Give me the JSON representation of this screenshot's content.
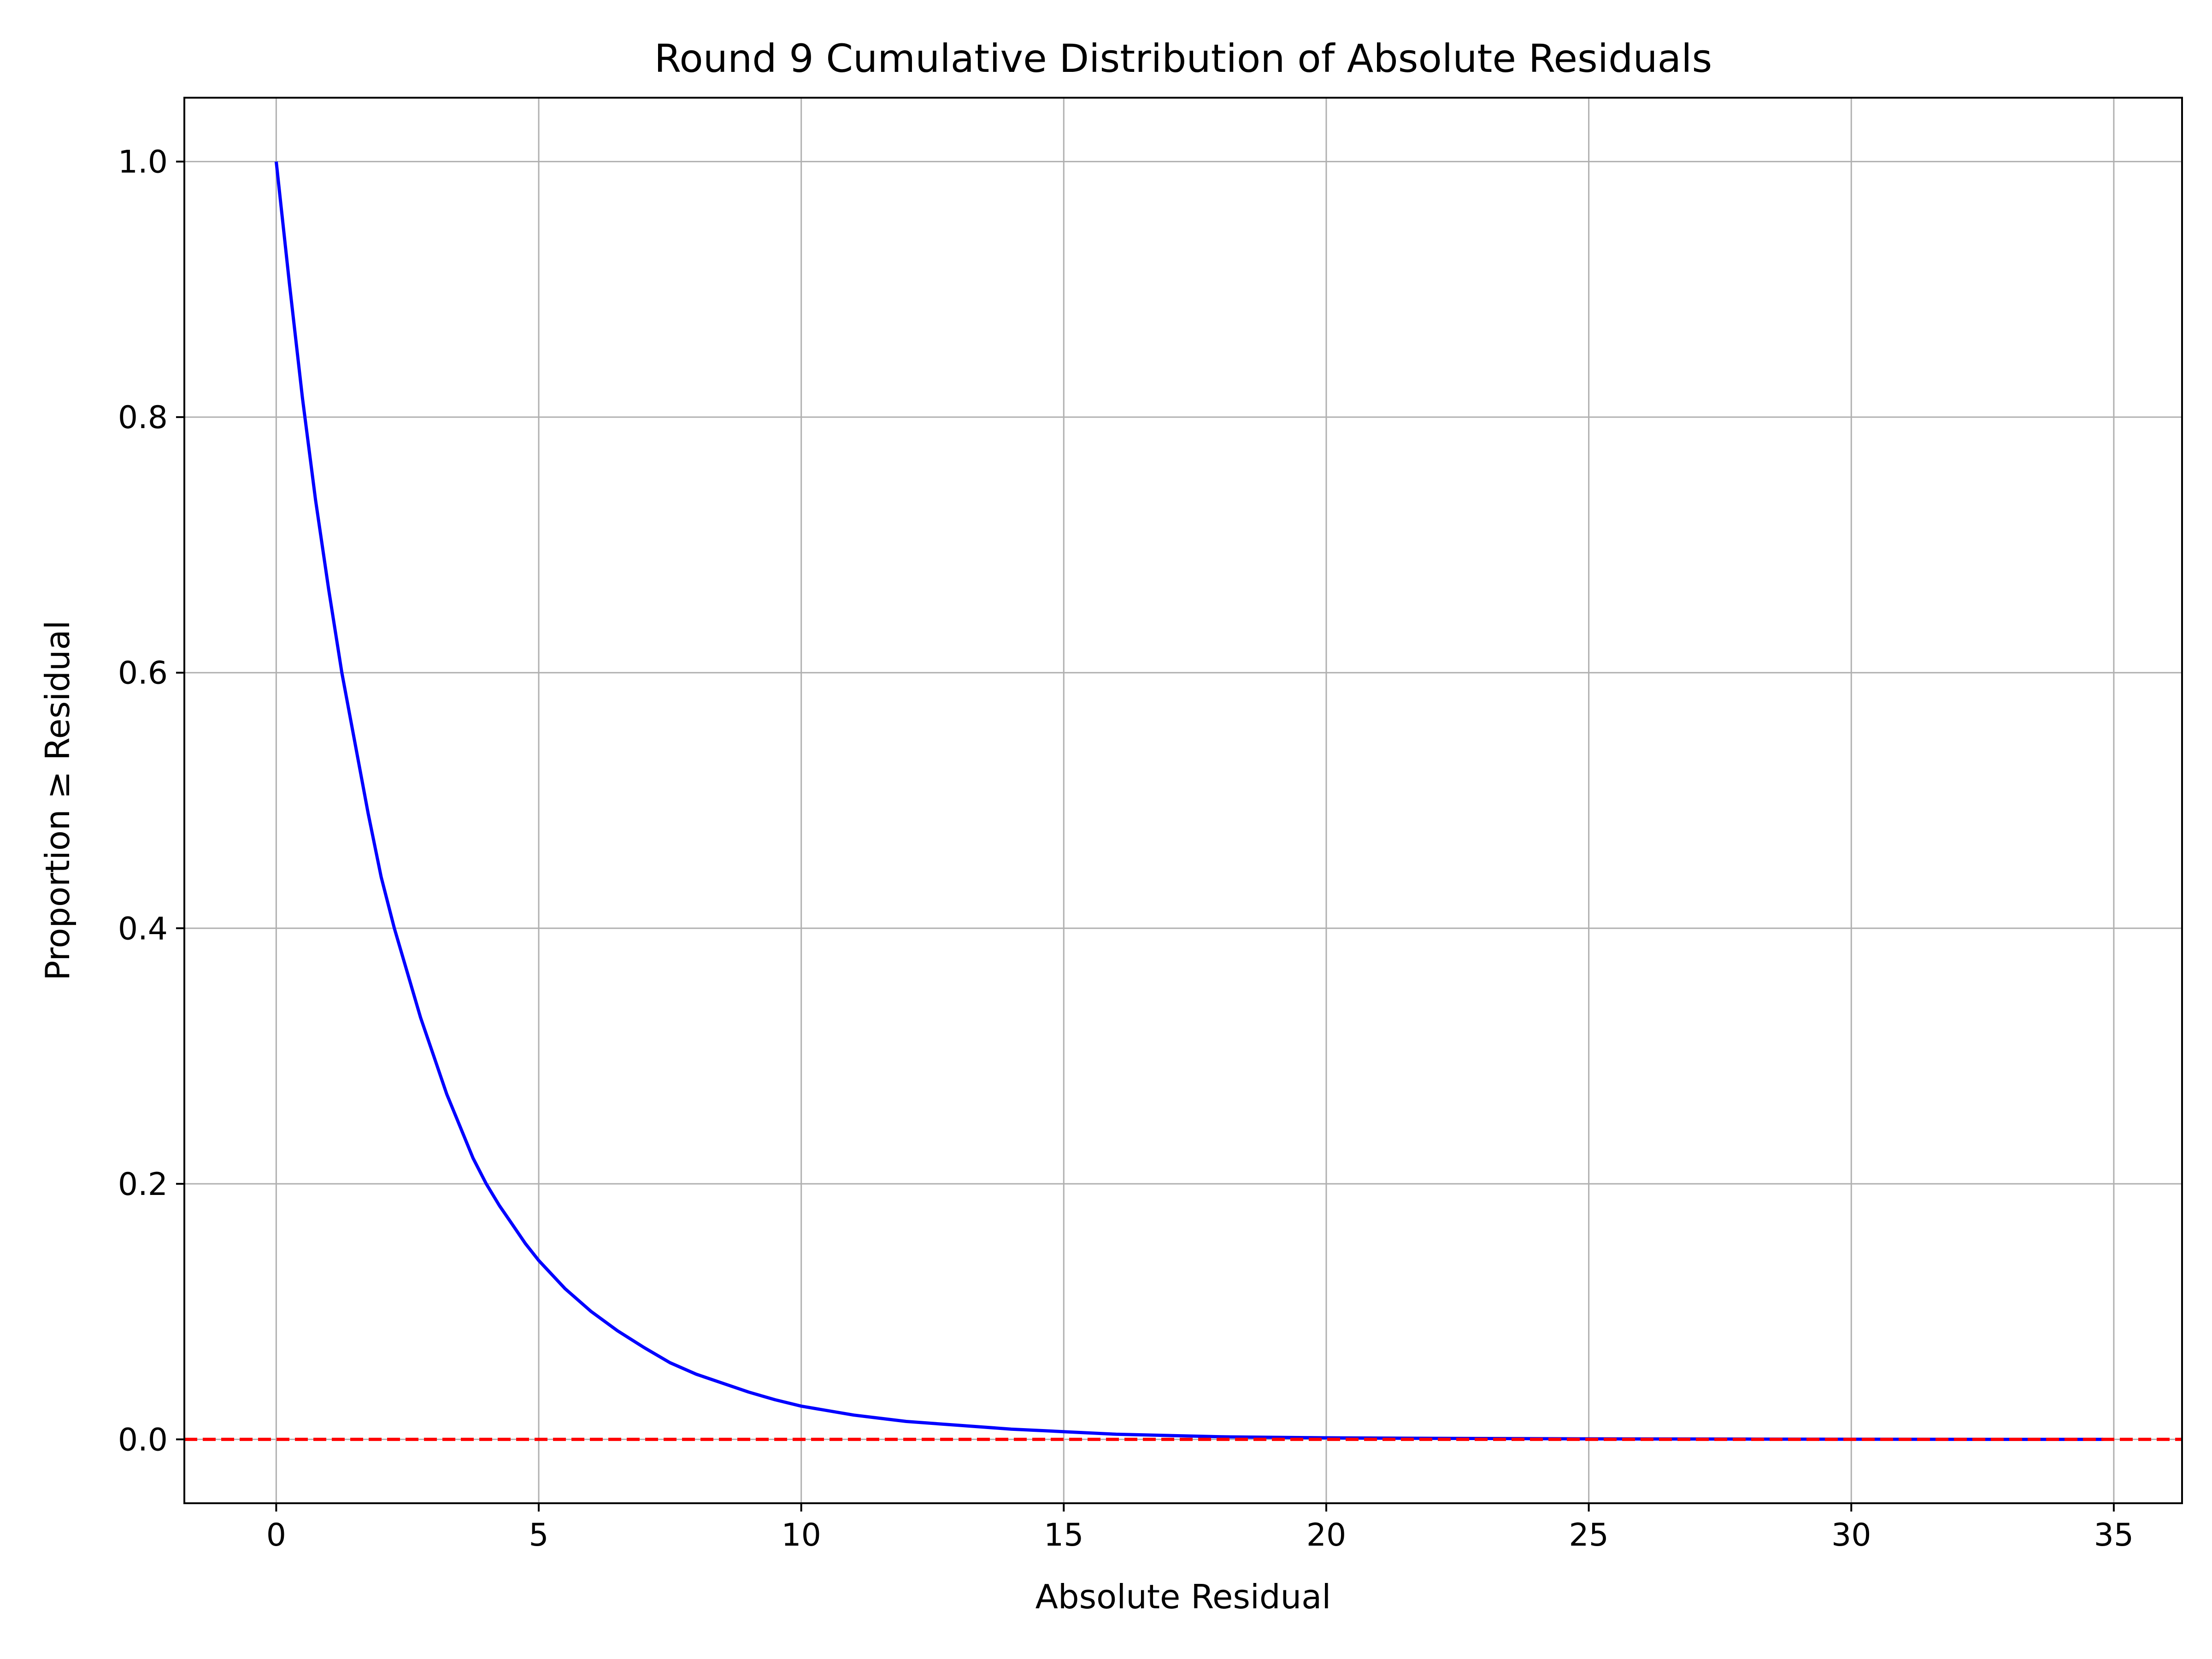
{
  "chart_data": {
    "type": "line",
    "title": "Round 9 Cumulative Distribution of Absolute Residuals",
    "xlabel": "Absolute Residual",
    "ylabel": "Proportion ≥ Residual",
    "xlim": [
      -1.75,
      36.3
    ],
    "ylim": [
      -0.05,
      1.05
    ],
    "x_ticks": [
      0,
      5,
      10,
      15,
      20,
      25,
      30,
      35
    ],
    "x_tick_labels": [
      "0",
      "5",
      "10",
      "15",
      "20",
      "25",
      "30",
      "35"
    ],
    "y_ticks": [
      0.0,
      0.2,
      0.4,
      0.6,
      0.8,
      1.0
    ],
    "y_tick_labels": [
      "0.0",
      "0.2",
      "0.4",
      "0.6",
      "0.8",
      "1.0"
    ],
    "grid": true,
    "legend": "none",
    "series": [
      {
        "color": "#0000ff",
        "line_style": "solid",
        "x": [
          0,
          0.25,
          0.5,
          0.75,
          1,
          1.25,
          1.5,
          1.75,
          2,
          2.25,
          2.5,
          2.75,
          3,
          3.25,
          3.5,
          3.75,
          4,
          4.25,
          4.5,
          4.75,
          5,
          5.5,
          6,
          6.5,
          7,
          7.5,
          8,
          8.5,
          9,
          9.5,
          10,
          11,
          12,
          13,
          14,
          15,
          16,
          17,
          18,
          20,
          22,
          25,
          28,
          30,
          33,
          34.8
        ],
        "y": [
          1.0,
          0.905,
          0.815,
          0.735,
          0.665,
          0.6,
          0.545,
          0.49,
          0.44,
          0.4,
          0.365,
          0.33,
          0.3,
          0.27,
          0.245,
          0.22,
          0.2,
          0.183,
          0.168,
          0.153,
          0.14,
          0.118,
          0.1,
          0.085,
          0.072,
          0.06,
          0.051,
          0.044,
          0.037,
          0.031,
          0.026,
          0.019,
          0.014,
          0.011,
          0.008,
          0.006,
          0.004,
          0.003,
          0.002,
          0.0012,
          0.0008,
          0.0004,
          0.0002,
          0.0001,
          0.0,
          0.0
        ]
      },
      {
        "color": "#ff0000",
        "line_style": "dashed",
        "x": [
          -1.75,
          36.3
        ],
        "y": [
          0.0,
          0.0
        ]
      }
    ]
  }
}
